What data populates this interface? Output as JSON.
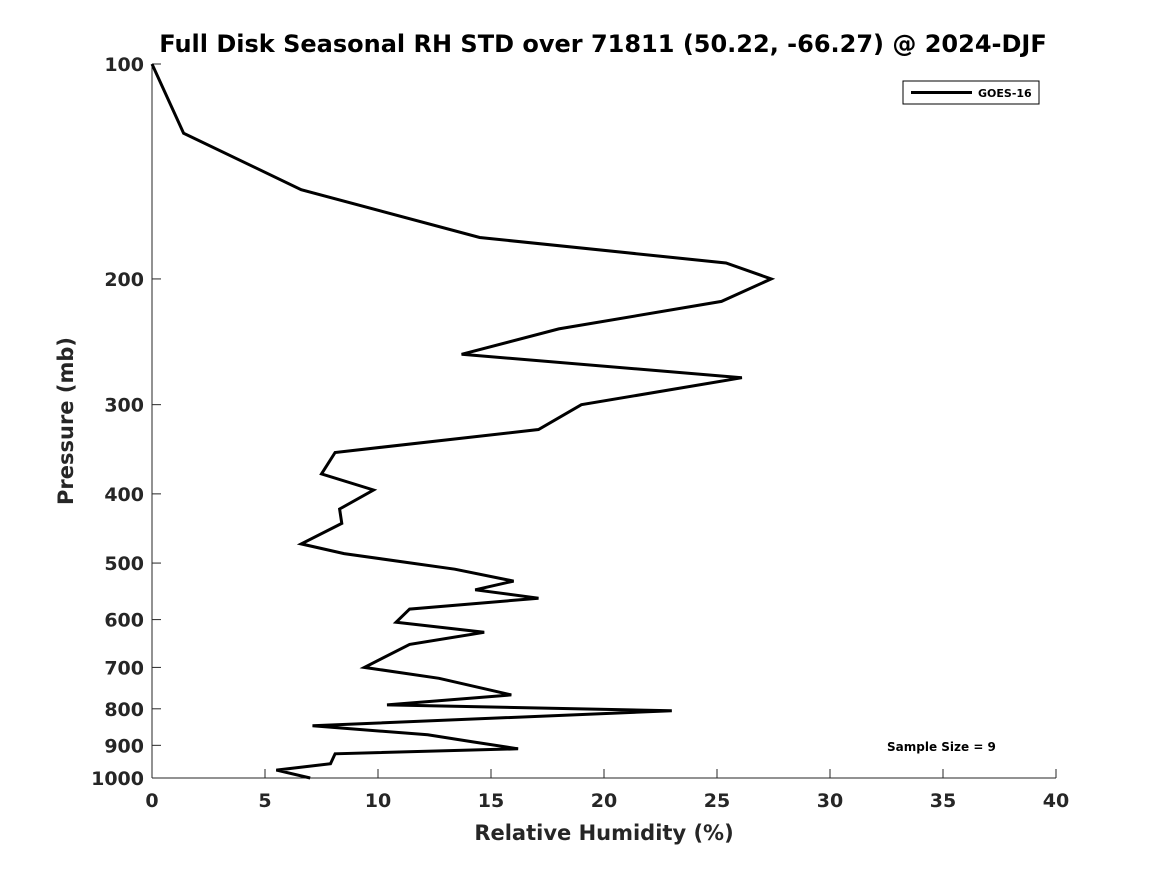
{
  "chart_data": {
    "type": "line",
    "title": "Full Disk Seasonal RH STD over 71811 (50.22, -66.27) @ 2024-DJF",
    "xlabel": "Relative Humidity (%)",
    "ylabel": "Pressure (mb)",
    "xlim": [
      0,
      40
    ],
    "ylim": [
      100,
      1000
    ],
    "y_scale": "log",
    "y_reversed": true,
    "x_ticks": [
      0,
      5,
      10,
      15,
      20,
      25,
      30,
      35,
      40
    ],
    "x_tick_labels": [
      "0",
      "5",
      "10",
      "15",
      "20",
      "25",
      "30",
      "35",
      "40"
    ],
    "y_ticks": [
      100,
      200,
      300,
      400,
      500,
      600,
      700,
      800,
      900,
      1000
    ],
    "y_tick_labels": [
      "100",
      "200",
      "300",
      "400",
      "500",
      "600",
      "700",
      "800",
      "900",
      "1000"
    ],
    "grid": false,
    "legend_position": "top-right",
    "annotation": "Sample Size = 9",
    "series": [
      {
        "name": "GOES-16",
        "color": "#000000",
        "points": [
          {
            "x": 0.0,
            "p": 100
          },
          {
            "x": 1.4,
            "p": 125
          },
          {
            "x": 6.6,
            "p": 150
          },
          {
            "x": 14.5,
            "p": 175
          },
          {
            "x": 25.4,
            "p": 190
          },
          {
            "x": 27.4,
            "p": 200
          },
          {
            "x": 25.2,
            "p": 215
          },
          {
            "x": 18.0,
            "p": 235
          },
          {
            "x": 13.7,
            "p": 255
          },
          {
            "x": 26.1,
            "p": 275
          },
          {
            "x": 19.0,
            "p": 300
          },
          {
            "x": 17.1,
            "p": 325
          },
          {
            "x": 8.1,
            "p": 350
          },
          {
            "x": 7.5,
            "p": 375
          },
          {
            "x": 9.8,
            "p": 395
          },
          {
            "x": 8.3,
            "p": 420
          },
          {
            "x": 8.4,
            "p": 440
          },
          {
            "x": 6.6,
            "p": 470
          },
          {
            "x": 8.5,
            "p": 485
          },
          {
            "x": 13.4,
            "p": 510
          },
          {
            "x": 16.0,
            "p": 530
          },
          {
            "x": 14.3,
            "p": 545
          },
          {
            "x": 17.1,
            "p": 560
          },
          {
            "x": 11.4,
            "p": 580
          },
          {
            "x": 10.8,
            "p": 605
          },
          {
            "x": 14.7,
            "p": 625
          },
          {
            "x": 11.4,
            "p": 650
          },
          {
            "x": 9.4,
            "p": 700
          },
          {
            "x": 12.7,
            "p": 725
          },
          {
            "x": 15.9,
            "p": 765
          },
          {
            "x": 10.4,
            "p": 790
          },
          {
            "x": 23.0,
            "p": 805
          },
          {
            "x": 7.1,
            "p": 845
          },
          {
            "x": 12.2,
            "p": 870
          },
          {
            "x": 14.2,
            "p": 890
          },
          {
            "x": 16.2,
            "p": 910
          },
          {
            "x": 8.1,
            "p": 925
          },
          {
            "x": 7.9,
            "p": 955
          },
          {
            "x": 5.5,
            "p": 975
          },
          {
            "x": 7.0,
            "p": 1000
          }
        ]
      }
    ]
  }
}
